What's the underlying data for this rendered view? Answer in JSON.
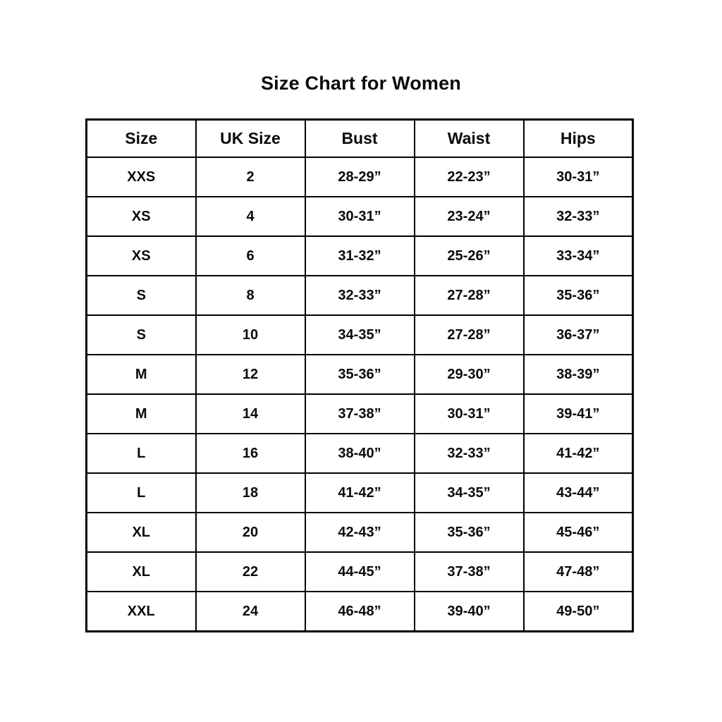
{
  "title": "Size Chart for Women",
  "colors": {
    "text": "#0a0a0a",
    "border": "#000000",
    "background": "#ffffff"
  },
  "chart_data": {
    "type": "table",
    "title": "Size Chart for Women",
    "columns": [
      "Size",
      "UK Size",
      "Bust",
      "Waist",
      "Hips"
    ],
    "rows": [
      [
        "XXS",
        "2",
        "28-29”",
        "22-23”",
        "30-31”"
      ],
      [
        "XS",
        "4",
        "30-31”",
        "23-24”",
        "32-33”"
      ],
      [
        "XS",
        "6",
        "31-32”",
        "25-26”",
        "33-34”"
      ],
      [
        "S",
        "8",
        "32-33”",
        "27-28”",
        "35-36”"
      ],
      [
        "S",
        "10",
        "34-35”",
        "27-28”",
        "36-37”"
      ],
      [
        "M",
        "12",
        "35-36”",
        "29-30”",
        "38-39”"
      ],
      [
        "M",
        "14",
        "37-38”",
        "30-31”",
        "39-41”"
      ],
      [
        "L",
        "16",
        "38-40”",
        "32-33”",
        "41-42”"
      ],
      [
        "L",
        "18",
        "41-42”",
        "34-35”",
        "43-44”"
      ],
      [
        "XL",
        "20",
        "42-43”",
        "35-36”",
        "45-46”"
      ],
      [
        "XL",
        "22",
        "44-45”",
        "37-38”",
        "47-48”"
      ],
      [
        "XXL",
        "24",
        "46-48”",
        "39-40”",
        "49-50”"
      ]
    ]
  }
}
